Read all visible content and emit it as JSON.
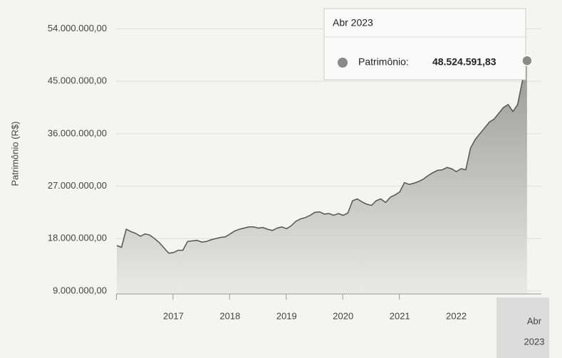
{
  "chart_data": {
    "type": "area",
    "y_label": "Patrimônio (R$)",
    "ylim": [
      8500000,
      56500000
    ],
    "yticks": [
      {
        "value": 9000000,
        "label": "9.000.000,00"
      },
      {
        "value": 18000000,
        "label": "18.000.000,00"
      },
      {
        "value": 27000000,
        "label": "27.000.000,00"
      },
      {
        "value": 36000000,
        "label": "36.000.000,00"
      },
      {
        "value": 45000000,
        "label": "45.000.000,00"
      },
      {
        "value": 54000000,
        "label": "54.000.000,00"
      }
    ],
    "grid": true,
    "xticks": [
      {
        "value": "2017-01",
        "label": "2017"
      },
      {
        "value": "2018-01",
        "label": "2018"
      },
      {
        "value": "2019-01",
        "label": "2019"
      },
      {
        "value": "2020-01",
        "label": "2020"
      },
      {
        "value": "2021-01",
        "label": "2021"
      },
      {
        "value": "2022-01",
        "label": "2022"
      }
    ],
    "x": [
      "2016-01",
      "2016-02",
      "2016-03",
      "2016-04",
      "2016-05",
      "2016-06",
      "2016-07",
      "2016-08",
      "2016-09",
      "2016-10",
      "2016-11",
      "2016-12",
      "2017-01",
      "2017-02",
      "2017-03",
      "2017-04",
      "2017-05",
      "2017-06",
      "2017-07",
      "2017-08",
      "2017-09",
      "2017-10",
      "2017-11",
      "2017-12",
      "2018-01",
      "2018-02",
      "2018-03",
      "2018-04",
      "2018-05",
      "2018-06",
      "2018-07",
      "2018-08",
      "2018-09",
      "2018-10",
      "2018-11",
      "2018-12",
      "2019-01",
      "2019-02",
      "2019-03",
      "2019-04",
      "2019-05",
      "2019-06",
      "2019-07",
      "2019-08",
      "2019-09",
      "2019-10",
      "2019-11",
      "2019-12",
      "2020-01",
      "2020-02",
      "2020-03",
      "2020-04",
      "2020-05",
      "2020-06",
      "2020-07",
      "2020-08",
      "2020-09",
      "2020-10",
      "2020-11",
      "2020-12",
      "2021-01",
      "2021-02",
      "2021-03",
      "2021-04",
      "2021-05",
      "2021-06",
      "2021-07",
      "2021-08",
      "2021-09",
      "2021-10",
      "2021-11",
      "2021-12",
      "2022-01",
      "2022-02",
      "2022-03",
      "2022-04",
      "2022-05",
      "2022-06",
      "2022-07",
      "2022-08",
      "2022-09",
      "2022-10",
      "2022-11",
      "2022-12",
      "2023-01",
      "2023-02",
      "2023-03",
      "2023-04"
    ],
    "series": [
      {
        "name": "Patrimônio",
        "color": "#555555",
        "fill": "#a6a6a6",
        "values": [
          16800000,
          16500000,
          19600000,
          19200000,
          18900000,
          18400000,
          18800000,
          18600000,
          18000000,
          17300000,
          16400000,
          15500000,
          15600000,
          16000000,
          16000000,
          17500000,
          17600000,
          17700000,
          17400000,
          17500000,
          17800000,
          18000000,
          18200000,
          18300000,
          18800000,
          19300000,
          19600000,
          19800000,
          20000000,
          20000000,
          19800000,
          19900000,
          19600000,
          19400000,
          19800000,
          20000000,
          19700000,
          20200000,
          21000000,
          21400000,
          21600000,
          22000000,
          22500000,
          22600000,
          22200000,
          22300000,
          22000000,
          22300000,
          22000000,
          22400000,
          24500000,
          24800000,
          24300000,
          23900000,
          23700000,
          24500000,
          24800000,
          24200000,
          25100000,
          25500000,
          26000000,
          27600000,
          27300000,
          27500000,
          27800000,
          28200000,
          28800000,
          29300000,
          29700000,
          29800000,
          30200000,
          30000000,
          29500000,
          30000000,
          29800000,
          33500000,
          35000000,
          36000000,
          37000000,
          38000000,
          38500000,
          39500000,
          40500000,
          41000000,
          39800000,
          41000000,
          45000000,
          48524591.83
        ]
      }
    ],
    "tooltip": {
      "title": "Abr 2023",
      "label": "Patrimônio:",
      "value_label": "48.524.591,83"
    },
    "crosshair_label": [
      "Abr",
      "2023"
    ]
  }
}
